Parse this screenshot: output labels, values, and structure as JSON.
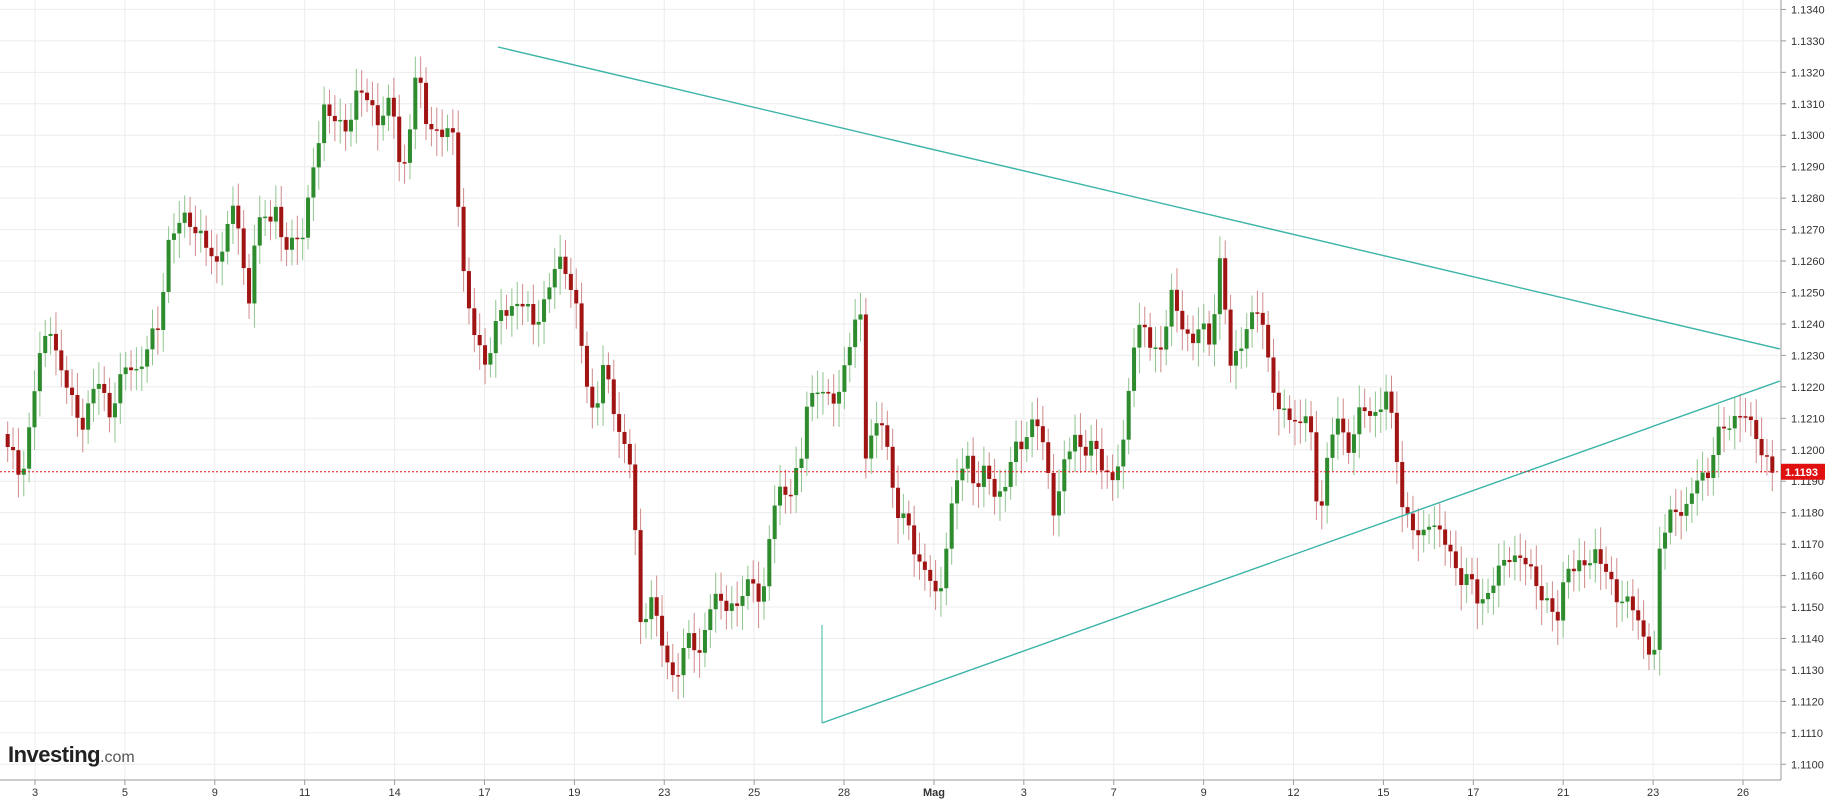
{
  "brand": {
    "name": "Investing",
    "suffix": ".com"
  },
  "colors": {
    "up": "#2e8b2e",
    "down": "#a01414",
    "trendline": "#3cb4a8",
    "price_line": "#e01010",
    "price_tag": "#e01010",
    "grid": "#ececec"
  },
  "chart_data": {
    "type": "candlestick",
    "title": "",
    "xlabel": "",
    "ylabel": "",
    "ylim": [
      1.1095,
      1.1343
    ],
    "grid": true,
    "y_ticks": [
      "1.1100",
      "1.1110",
      "1.1120",
      "1.1130",
      "1.1140",
      "1.1150",
      "1.1160",
      "1.1170",
      "1.1180",
      "1.1190",
      "1.1200",
      "1.1210",
      "1.1220",
      "1.1230",
      "1.1240",
      "1.1250",
      "1.1260",
      "1.1270",
      "1.1280",
      "1.1290",
      "1.1300",
      "1.1310",
      "1.1320",
      "1.1330",
      "1.1340"
    ],
    "x_ticks": [
      "3",
      "5",
      "9",
      "11",
      "14",
      "17",
      "19",
      "23",
      "25",
      "28",
      "Mag",
      "3",
      "7",
      "9",
      "12",
      "15",
      "17",
      "21",
      "23",
      "26"
    ],
    "current_price": "1.1193",
    "path": [
      [
        0,
        1.1205
      ],
      [
        2,
        1.119
      ],
      [
        3.5,
        1.1225
      ],
      [
        5,
        1.124
      ],
      [
        6,
        1.1225
      ],
      [
        8,
        1.1208
      ],
      [
        10,
        1.1222
      ],
      [
        11,
        1.1212
      ],
      [
        13,
        1.1228
      ],
      [
        14,
        1.1225
      ],
      [
        16,
        1.124
      ],
      [
        17,
        1.1265
      ],
      [
        19,
        1.1276
      ],
      [
        20,
        1.1268
      ],
      [
        22,
        1.126
      ],
      [
        24,
        1.1278
      ],
      [
        24.8,
        1.1258
      ],
      [
        25.2,
        1.1242
      ],
      [
        26,
        1.127
      ],
      [
        28,
        1.1278
      ],
      [
        28.8,
        1.1262
      ],
      [
        30,
        1.1268
      ],
      [
        31,
        1.127
      ],
      [
        32,
        1.129
      ],
      [
        33,
        1.131
      ],
      [
        35,
        1.13
      ],
      [
        36.5,
        1.1315
      ],
      [
        37.5,
        1.131
      ],
      [
        38.5,
        1.1306
      ],
      [
        40,
        1.131
      ],
      [
        41,
        1.1285
      ],
      [
        42.5,
        1.132
      ],
      [
        43.5,
        1.1305
      ],
      [
        45,
        1.13
      ],
      [
        46.5,
        1.13
      ],
      [
        47,
        1.1265
      ],
      [
        48,
        1.124
      ],
      [
        49.5,
        1.1228
      ],
      [
        51,
        1.1242
      ],
      [
        53,
        1.1248
      ],
      [
        54.5,
        1.124
      ],
      [
        56,
        1.125
      ],
      [
        57,
        1.126
      ],
      [
        58,
        1.1258
      ],
      [
        59,
        1.1242
      ],
      [
        60,
        1.122
      ],
      [
        60.8,
        1.121
      ],
      [
        61.5,
        1.1228
      ],
      [
        62.5,
        1.1215
      ],
      [
        63.5,
        1.1205
      ],
      [
        64.5,
        1.1195
      ],
      [
        65.5,
        1.1143
      ],
      [
        66.5,
        1.1155
      ],
      [
        67.5,
        1.114
      ],
      [
        68.5,
        1.1128
      ],
      [
        69.5,
        1.1132
      ],
      [
        70.5,
        1.114
      ],
      [
        71.5,
        1.1135
      ],
      [
        72.5,
        1.115
      ],
      [
        74,
        1.1152
      ],
      [
        75.5,
        1.115
      ],
      [
        77,
        1.116
      ],
      [
        78,
        1.115
      ],
      [
        79,
        1.118
      ],
      [
        80,
        1.119
      ],
      [
        81,
        1.1185
      ],
      [
        82,
        1.1198
      ],
      [
        82.5,
        1.1215
      ],
      [
        83.5,
        1.122
      ],
      [
        84.5,
        1.1215
      ],
      [
        86,
        1.122
      ],
      [
        87.5,
        1.124
      ],
      [
        88,
        1.1248
      ],
      [
        88.5,
        1.12
      ],
      [
        89.5,
        1.1205
      ],
      [
        90.5,
        1.121
      ],
      [
        91,
        1.1195
      ],
      [
        92,
        1.1178
      ],
      [
        93,
        1.1175
      ],
      [
        94,
        1.1165
      ],
      [
        95,
        1.116
      ],
      [
        96,
        1.115
      ],
      [
        97,
        1.1175
      ],
      [
        98,
        1.119
      ],
      [
        99,
        1.1198
      ],
      [
        100,
        1.1188
      ],
      [
        101,
        1.1193
      ],
      [
        102,
        1.1185
      ],
      [
        103,
        1.119
      ],
      [
        104,
        1.12
      ],
      [
        105,
        1.1205
      ],
      [
        106,
        1.121
      ],
      [
        107,
        1.1198
      ],
      [
        108,
        1.118
      ],
      [
        109,
        1.1195
      ],
      [
        110,
        1.1205
      ],
      [
        111,
        1.12
      ],
      [
        112,
        1.12
      ],
      [
        113,
        1.1195
      ],
      [
        114,
        1.119
      ],
      [
        115,
        1.12
      ],
      [
        116,
        1.1235
      ],
      [
        117,
        1.124
      ],
      [
        118,
        1.123
      ],
      [
        119,
        1.1235
      ],
      [
        120,
        1.1248
      ],
      [
        121,
        1.124
      ],
      [
        122,
        1.1235
      ],
      [
        123,
        1.1238
      ],
      [
        124,
        1.1235
      ],
      [
        125,
        1.1262
      ],
      [
        126,
        1.1225
      ],
      [
        127,
        1.1235
      ],
      [
        128,
        1.124
      ],
      [
        129,
        1.1245
      ],
      [
        130,
        1.1228
      ],
      [
        131,
        1.121
      ],
      [
        132,
        1.1212
      ],
      [
        133,
        1.1208
      ],
      [
        134,
        1.1212
      ],
      [
        135,
        1.1178
      ],
      [
        136,
        1.1198
      ],
      [
        137,
        1.121
      ],
      [
        138,
        1.12
      ],
      [
        139,
        1.121
      ],
      [
        140,
        1.1212
      ],
      [
        141,
        1.1212
      ],
      [
        142,
        1.1218
      ],
      [
        143,
        1.12
      ],
      [
        143.5,
        1.1185
      ],
      [
        144.5,
        1.1176
      ],
      [
        145.5,
        1.117
      ],
      [
        146.5,
        1.118
      ],
      [
        147.5,
        1.1172
      ],
      [
        148.5,
        1.1168
      ],
      [
        149.5,
        1.116
      ],
      [
        150.5,
        1.1158
      ],
      [
        151.5,
        1.1152
      ],
      [
        152.5,
        1.1155
      ],
      [
        153.5,
        1.116
      ],
      [
        154.5,
        1.1168
      ],
      [
        155.5,
        1.1165
      ],
      [
        156.5,
        1.1163
      ],
      [
        157.5,
        1.1158
      ],
      [
        158.5,
        1.115
      ],
      [
        159.5,
        1.1145
      ],
      [
        160.5,
        1.1165
      ],
      [
        161.5,
        1.116
      ],
      [
        162.5,
        1.1165
      ],
      [
        163.5,
        1.1168
      ],
      [
        164.5,
        1.116
      ],
      [
        165.5,
        1.1155
      ],
      [
        166.5,
        1.1152
      ],
      [
        167.5,
        1.1148
      ],
      [
        168.5,
        1.114
      ],
      [
        169.5,
        1.1135
      ],
      [
        170,
        1.1165
      ],
      [
        171,
        1.1182
      ],
      [
        172,
        1.118
      ],
      [
        173,
        1.118
      ],
      [
        174,
        1.1195
      ],
      [
        175,
        1.119
      ],
      [
        176,
        1.1205
      ],
      [
        177,
        1.121
      ],
      [
        178,
        1.1208
      ],
      [
        179,
        1.1212
      ],
      [
        180,
        1.1205
      ],
      [
        180.8,
        1.1195
      ],
      [
        181.6,
        1.1193
      ]
    ]
  }
}
